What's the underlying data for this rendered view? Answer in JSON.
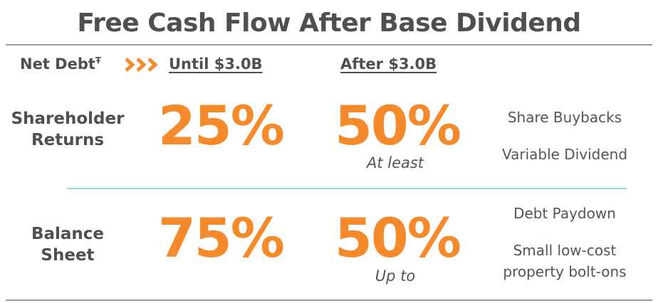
{
  "header": {
    "title": "Free Cash Flow After Base Dividend",
    "net_debt_label": "Net Debt",
    "net_debt_mark": "Ŧ",
    "columns": [
      "Until $3.0B",
      "After $3.0B"
    ]
  },
  "rows": [
    {
      "label_lines": [
        "Shareholder",
        "Returns"
      ],
      "until": "25%",
      "after": "50%",
      "after_note": "At least",
      "uses": [
        [
          "Share Buybacks"
        ],
        [
          "Variable Dividend"
        ]
      ]
    },
    {
      "label_lines": [
        "Balance",
        "Sheet"
      ],
      "until": "75%",
      "after": "50%",
      "after_note": "Up to",
      "uses": [
        [
          "Debt Paydown"
        ],
        [
          "Small low-cost",
          "property bolt-ons"
        ]
      ]
    }
  ]
}
